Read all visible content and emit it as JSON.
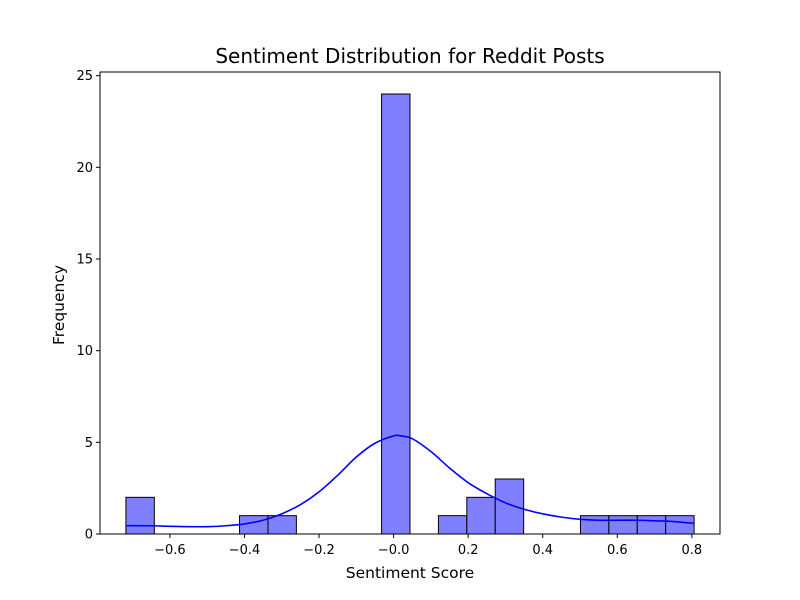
{
  "chart_data": {
    "type": "bar",
    "title": "Sentiment Distribution for Reddit Posts",
    "xlabel": "Sentiment Score",
    "ylabel": "Frequency",
    "xlim": [
      -0.7875,
      0.8755
    ],
    "ylim": [
      0,
      25.2
    ],
    "xticks": [
      -0.6,
      -0.4,
      -0.2,
      0.0,
      0.2,
      0.4,
      0.6,
      0.8
    ],
    "xtick_labels": [
      "−0.6",
      "−0.4",
      "−0.2",
      "−0.0",
      "0.2",
      "0.4",
      "0.6",
      "0.8"
    ],
    "yticks": [
      0,
      5,
      10,
      15,
      20,
      25
    ],
    "ytick_labels": [
      "0",
      "5",
      "10",
      "15",
      "20",
      "25"
    ],
    "bin_width": 0.0762,
    "bins": [
      {
        "x0": -0.718,
        "x1": -0.6418,
        "count": 2
      },
      {
        "x0": -0.4132,
        "x1": -0.337,
        "count": 1
      },
      {
        "x0": -0.337,
        "x1": -0.2608,
        "count": 1
      },
      {
        "x0": -0.0322,
        "x1": 0.044,
        "count": 24
      },
      {
        "x0": 0.1202,
        "x1": 0.1964,
        "count": 1
      },
      {
        "x0": 0.1964,
        "x1": 0.2726,
        "count": 2
      },
      {
        "x0": 0.2726,
        "x1": 0.3488,
        "count": 3
      },
      {
        "x0": 0.5012,
        "x1": 0.5774,
        "count": 1
      },
      {
        "x0": 0.5774,
        "x1": 0.6536,
        "count": 1
      },
      {
        "x0": 0.6536,
        "x1": 0.7298,
        "count": 1
      },
      {
        "x0": 0.7298,
        "x1": 0.806,
        "count": 1
      }
    ],
    "kde": {
      "x": [
        -0.718,
        -0.65,
        -0.6,
        -0.55,
        -0.5,
        -0.45,
        -0.4,
        -0.35,
        -0.3,
        -0.25,
        -0.2,
        -0.15,
        -0.1,
        -0.05,
        0.0,
        0.02,
        0.05,
        0.1,
        0.15,
        0.2,
        0.25,
        0.3,
        0.35,
        0.4,
        0.45,
        0.5,
        0.55,
        0.6,
        0.65,
        0.7,
        0.75,
        0.806
      ],
      "y": [
        0.45,
        0.45,
        0.42,
        0.4,
        0.4,
        0.45,
        0.55,
        0.75,
        1.1,
        1.6,
        2.3,
        3.2,
        4.2,
        4.95,
        5.35,
        5.35,
        5.2,
        4.5,
        3.6,
        2.8,
        2.2,
        1.7,
        1.35,
        1.1,
        0.92,
        0.8,
        0.75,
        0.75,
        0.75,
        0.72,
        0.68,
        0.58
      ]
    },
    "bar_color": "#8080ff",
    "bar_edge_color": "#000000",
    "kde_color": "#0000ff",
    "grid": false,
    "legend": "none"
  }
}
